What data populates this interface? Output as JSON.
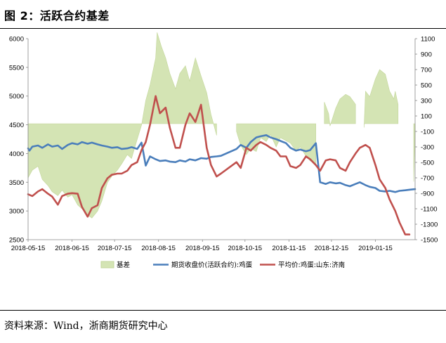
{
  "header": {
    "title": "图 2：活跃合约基差"
  },
  "footer": {
    "source": "资料来源：Wind，浙商期货研究中心"
  },
  "chart_data": {
    "type": "line",
    "title": "",
    "x_labels": [
      "2018-05-15",
      "2018-06-15",
      "2018-07-15",
      "2018-08-15",
      "2018-09-15",
      "2018-10-15",
      "2018-11-15",
      "2018-12-15",
      "2019-01-15"
    ],
    "x_range": [
      "2018-05-15",
      "2019-02-12"
    ],
    "y_left": {
      "min": 2500,
      "max": 6000,
      "step": 500,
      "ticks": [
        "2500",
        "3000",
        "3500",
        "4000",
        "4500",
        "5000",
        "5500",
        "6000"
      ]
    },
    "y_right": {
      "min": -1500,
      "max": 1100,
      "step": 200,
      "ticks": [
        "-1500",
        "-1300",
        "-1100",
        "-900",
        "-700",
        "-500",
        "-300",
        "-100",
        "100",
        "300",
        "500",
        "700",
        "900",
        "1100"
      ]
    },
    "legend_position": "bottom",
    "grid": false,
    "series": [
      {
        "name": "基差",
        "kind": "area",
        "axis": "right",
        "color": "#d4e4b4",
        "points": [
          [
            "2018-05-15",
            -700
          ],
          [
            "2018-05-18",
            -600
          ],
          [
            "2018-05-22",
            -550
          ],
          [
            "2018-05-25",
            -720
          ],
          [
            "2018-05-29",
            -800
          ],
          [
            "2018-06-01",
            -880
          ],
          [
            "2018-06-05",
            -930
          ],
          [
            "2018-06-08",
            -860
          ],
          [
            "2018-06-12",
            -950
          ],
          [
            "2018-06-15",
            -920
          ],
          [
            "2018-06-19",
            -1050
          ],
          [
            "2018-06-22",
            -1100
          ],
          [
            "2018-06-26",
            -1180
          ],
          [
            "2018-06-29",
            -1220
          ],
          [
            "2018-07-03",
            -1130
          ],
          [
            "2018-07-06",
            -1000
          ],
          [
            "2018-07-10",
            -760
          ],
          [
            "2018-07-13",
            -680
          ],
          [
            "2018-07-17",
            -600
          ],
          [
            "2018-07-20",
            -520
          ],
          [
            "2018-07-24",
            -400
          ],
          [
            "2018-07-27",
            -450
          ],
          [
            "2018-07-31",
            -200
          ],
          [
            "2018-08-03",
            -20
          ],
          [
            "2018-08-06",
            300
          ],
          [
            "2018-08-09",
            500
          ],
          [
            "2018-08-13",
            850
          ],
          [
            "2018-08-14",
            1180
          ],
          [
            "2018-08-17",
            1000
          ],
          [
            "2018-08-20",
            850
          ],
          [
            "2018-08-23",
            650
          ],
          [
            "2018-08-27",
            450
          ],
          [
            "2018-08-30",
            650
          ],
          [
            "2018-09-03",
            750
          ],
          [
            "2018-09-06",
            550
          ],
          [
            "2018-09-10",
            850
          ],
          [
            "2018-09-14",
            620
          ],
          [
            "2018-09-18",
            400
          ],
          [
            "2018-09-21",
            120
          ],
          [
            "2018-09-25",
            -150
          ],
          [
            "2018-10-09",
            -100
          ],
          [
            "2018-10-12",
            -280
          ],
          [
            "2018-10-16",
            -400
          ],
          [
            "2018-10-19",
            -320
          ],
          [
            "2018-10-23",
            -360
          ],
          [
            "2018-10-26",
            -180
          ],
          [
            "2018-10-30",
            -230
          ],
          [
            "2018-11-02",
            -140
          ],
          [
            "2018-11-06",
            -300
          ],
          [
            "2018-11-09",
            -180
          ],
          [
            "2018-11-13",
            -220
          ],
          [
            "2018-11-16",
            -250
          ],
          [
            "2018-11-20",
            -350
          ],
          [
            "2018-11-23",
            -300
          ],
          [
            "2018-11-27",
            -420
          ],
          [
            "2018-11-30",
            -480
          ],
          [
            "2018-12-04",
            -520
          ],
          [
            "2018-12-10",
            280
          ],
          [
            "2018-12-13",
            130
          ],
          [
            "2018-12-14",
            -30
          ],
          [
            "2018-12-18",
            200
          ],
          [
            "2018-12-21",
            320
          ],
          [
            "2018-12-25",
            380
          ],
          [
            "2018-12-28",
            350
          ],
          [
            "2019-01-01",
            250
          ],
          [
            "2019-01-07",
            -50
          ],
          [
            "2019-01-08",
            420
          ],
          [
            "2019-01-11",
            350
          ],
          [
            "2019-01-15",
            580
          ],
          [
            "2019-01-18",
            700
          ],
          [
            "2019-01-22",
            640
          ],
          [
            "2019-01-25",
            420
          ],
          [
            "2019-01-28",
            320
          ],
          [
            "2019-01-29",
            420
          ],
          [
            "2019-01-31",
            250
          ],
          [
            "2019-02-11",
            -750
          ],
          [
            "2019-02-12",
            -100
          ]
        ]
      },
      {
        "name": "期货收盘价(活跃合约):鸡蛋",
        "kind": "line",
        "axis": "left",
        "color": "#4a7ebb",
        "points": [
          [
            "2018-05-15",
            4090
          ],
          [
            "2018-05-16",
            4050
          ],
          [
            "2018-05-18",
            4120
          ],
          [
            "2018-05-22",
            4140
          ],
          [
            "2018-05-25",
            4100
          ],
          [
            "2018-05-29",
            4160
          ],
          [
            "2018-06-01",
            4120
          ],
          [
            "2018-06-05",
            4140
          ],
          [
            "2018-06-08",
            4080
          ],
          [
            "2018-06-12",
            4150
          ],
          [
            "2018-06-15",
            4180
          ],
          [
            "2018-06-19",
            4160
          ],
          [
            "2018-06-22",
            4200
          ],
          [
            "2018-06-26",
            4170
          ],
          [
            "2018-06-29",
            4190
          ],
          [
            "2018-07-03",
            4160
          ],
          [
            "2018-07-06",
            4140
          ],
          [
            "2018-07-10",
            4120
          ],
          [
            "2018-07-13",
            4100
          ],
          [
            "2018-07-17",
            4110
          ],
          [
            "2018-07-20",
            4080
          ],
          [
            "2018-07-24",
            4090
          ],
          [
            "2018-07-27",
            4110
          ],
          [
            "2018-07-31",
            4080
          ],
          [
            "2018-08-03",
            4190
          ],
          [
            "2018-08-06",
            3790
          ],
          [
            "2018-08-09",
            3950
          ],
          [
            "2018-08-13",
            3900
          ],
          [
            "2018-08-16",
            3870
          ],
          [
            "2018-08-20",
            3880
          ],
          [
            "2018-08-23",
            3860
          ],
          [
            "2018-08-27",
            3850
          ],
          [
            "2018-08-30",
            3880
          ],
          [
            "2018-09-03",
            3860
          ],
          [
            "2018-09-06",
            3900
          ],
          [
            "2018-09-10",
            3880
          ],
          [
            "2018-09-14",
            3920
          ],
          [
            "2018-09-18",
            3910
          ],
          [
            "2018-09-21",
            3940
          ],
          [
            "2018-09-25",
            3950
          ],
          [
            "2018-09-28",
            3960
          ],
          [
            "2018-10-09",
            4080
          ],
          [
            "2018-10-12",
            4150
          ],
          [
            "2018-10-16",
            4100
          ],
          [
            "2018-10-19",
            4200
          ],
          [
            "2018-10-23",
            4280
          ],
          [
            "2018-10-26",
            4300
          ],
          [
            "2018-10-30",
            4320
          ],
          [
            "2018-11-02",
            4280
          ],
          [
            "2018-11-06",
            4250
          ],
          [
            "2018-11-09",
            4220
          ],
          [
            "2018-11-13",
            4180
          ],
          [
            "2018-11-16",
            4100
          ],
          [
            "2018-11-20",
            4050
          ],
          [
            "2018-11-23",
            4070
          ],
          [
            "2018-11-27",
            4040
          ],
          [
            "2018-11-30",
            4060
          ],
          [
            "2018-12-04",
            4180
          ],
          [
            "2018-12-07",
            3500
          ],
          [
            "2018-12-11",
            3470
          ],
          [
            "2018-12-14",
            3500
          ],
          [
            "2018-12-18",
            3480
          ],
          [
            "2018-12-21",
            3490
          ],
          [
            "2018-12-25",
            3450
          ],
          [
            "2018-12-28",
            3430
          ],
          [
            "2019-01-01",
            3470
          ],
          [
            "2019-01-04",
            3500
          ],
          [
            "2019-01-08",
            3450
          ],
          [
            "2019-01-11",
            3420
          ],
          [
            "2019-01-15",
            3400
          ],
          [
            "2019-01-18",
            3350
          ],
          [
            "2019-01-22",
            3340
          ],
          [
            "2019-01-25",
            3350
          ],
          [
            "2019-01-29",
            3330
          ],
          [
            "2019-02-01",
            3350
          ],
          [
            "2019-02-05",
            3360
          ],
          [
            "2019-02-08",
            3370
          ],
          [
            "2019-02-12",
            3380
          ]
        ]
      },
      {
        "name": "平均价:鸡蛋:山东:济南",
        "kind": "line",
        "axis": "left",
        "color": "#c0504d",
        "points": [
          [
            "2018-05-15",
            3290
          ],
          [
            "2018-05-18",
            3260
          ],
          [
            "2018-05-22",
            3340
          ],
          [
            "2018-05-25",
            3380
          ],
          [
            "2018-05-29",
            3300
          ],
          [
            "2018-06-01",
            3250
          ],
          [
            "2018-06-05",
            3110
          ],
          [
            "2018-06-08",
            3260
          ],
          [
            "2018-06-12",
            3300
          ],
          [
            "2018-06-15",
            3310
          ],
          [
            "2018-06-19",
            3300
          ],
          [
            "2018-06-22",
            3070
          ],
          [
            "2018-06-26",
            2900
          ],
          [
            "2018-06-29",
            3050
          ],
          [
            "2018-07-03",
            3100
          ],
          [
            "2018-07-06",
            3400
          ],
          [
            "2018-07-10",
            3570
          ],
          [
            "2018-07-13",
            3630
          ],
          [
            "2018-07-17",
            3650
          ],
          [
            "2018-07-20",
            3650
          ],
          [
            "2018-07-24",
            3700
          ],
          [
            "2018-07-27",
            3800
          ],
          [
            "2018-07-31",
            3850
          ],
          [
            "2018-08-03",
            4060
          ],
          [
            "2018-08-06",
            4200
          ],
          [
            "2018-08-09",
            4500
          ],
          [
            "2018-08-13",
            5000
          ],
          [
            "2018-08-16",
            4700
          ],
          [
            "2018-08-20",
            4800
          ],
          [
            "2018-08-23",
            4450
          ],
          [
            "2018-08-27",
            4100
          ],
          [
            "2018-08-30",
            4100
          ],
          [
            "2018-09-03",
            4500
          ],
          [
            "2018-09-06",
            4700
          ],
          [
            "2018-09-10",
            4550
          ],
          [
            "2018-09-14",
            4850
          ],
          [
            "2018-09-18",
            4100
          ],
          [
            "2018-09-21",
            3800
          ],
          [
            "2018-09-25",
            3600
          ],
          [
            "2018-09-28",
            3650
          ],
          [
            "2018-10-09",
            3850
          ],
          [
            "2018-10-12",
            3750
          ],
          [
            "2018-10-16",
            4100
          ],
          [
            "2018-10-19",
            4050
          ],
          [
            "2018-10-23",
            4150
          ],
          [
            "2018-10-26",
            4200
          ],
          [
            "2018-10-30",
            4150
          ],
          [
            "2018-11-02",
            4100
          ],
          [
            "2018-11-06",
            4050
          ],
          [
            "2018-11-09",
            3950
          ],
          [
            "2018-11-13",
            3950
          ],
          [
            "2018-11-16",
            3780
          ],
          [
            "2018-11-20",
            3750
          ],
          [
            "2018-11-23",
            3800
          ],
          [
            "2018-11-27",
            3950
          ],
          [
            "2018-11-30",
            3900
          ],
          [
            "2018-12-04",
            3800
          ],
          [
            "2018-12-07",
            3700
          ],
          [
            "2018-12-11",
            3880
          ],
          [
            "2018-12-14",
            3900
          ],
          [
            "2018-12-18",
            3880
          ],
          [
            "2018-12-21",
            3750
          ],
          [
            "2018-12-25",
            3700
          ],
          [
            "2018-12-28",
            3850
          ],
          [
            "2019-01-01",
            4000
          ],
          [
            "2019-01-04",
            4100
          ],
          [
            "2019-01-08",
            4150
          ],
          [
            "2019-01-11",
            4100
          ],
          [
            "2019-01-15",
            3800
          ],
          [
            "2019-01-18",
            3550
          ],
          [
            "2019-01-22",
            3400
          ],
          [
            "2019-01-25",
            3200
          ],
          [
            "2019-01-29",
            3000
          ],
          [
            "2019-02-01",
            2800
          ],
          [
            "2019-02-05",
            2590
          ],
          [
            "2019-02-08",
            2590
          ]
        ]
      }
    ]
  }
}
